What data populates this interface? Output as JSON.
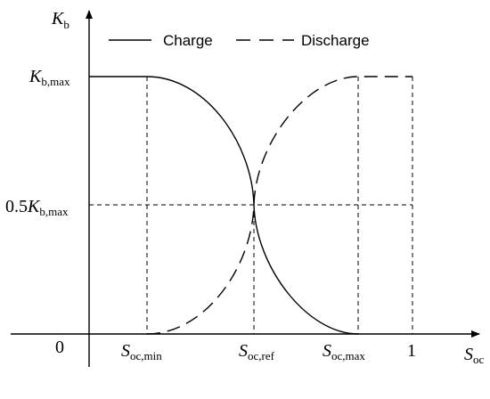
{
  "legend": {
    "charge": "Charge",
    "discharge": "Discharge"
  },
  "y_axis": {
    "symbol": "K",
    "symbol_sub": "b",
    "tick_max": {
      "symbol": "K",
      "sub": "b,max"
    },
    "tick_half": {
      "prefix": "0.5",
      "symbol": "K",
      "sub": "b,max"
    }
  },
  "x_axis": {
    "origin": "0",
    "symbol": "S",
    "symbol_sub": "oc",
    "ticks": [
      {
        "symbol": "S",
        "sub": "oc,min"
      },
      {
        "symbol": "S",
        "sub": "oc,ref"
      },
      {
        "symbol": "S",
        "sub": "oc,max"
      },
      {
        "text": "1"
      }
    ]
  }
}
